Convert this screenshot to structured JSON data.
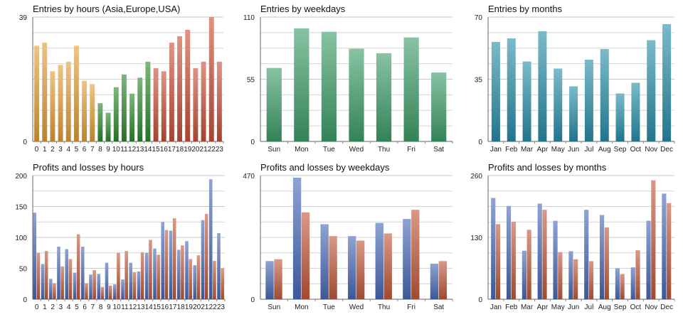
{
  "chart_data": [
    {
      "id": "c1",
      "type": "bar",
      "title": "Entries by hours (Asia,Europe,USA)",
      "ylim": [
        0,
        39
      ],
      "yticks": [
        0,
        39
      ],
      "categories": [
        "0",
        "1",
        "2",
        "3",
        "4",
        "5",
        "6",
        "7",
        "8",
        "9",
        "10",
        "11",
        "12",
        "13",
        "14",
        "15",
        "16",
        "17",
        "18",
        "19",
        "20",
        "21",
        "22",
        "23"
      ],
      "series": [
        {
          "name": "Entries",
          "values": [
            30,
            31,
            22,
            24,
            25,
            30,
            19,
            18,
            12,
            9,
            17,
            21,
            15,
            20,
            25,
            23,
            22,
            31,
            33,
            35,
            23,
            25,
            39,
            25
          ]
        }
      ],
      "bar_colors": [
        "#e3a03c",
        "#e3a03c",
        "#e3a03c",
        "#e3a03c",
        "#e3a03c",
        "#e3a03c",
        "#e3a03c",
        "#e3a03c",
        "#2e8a2e",
        "#2e8a2e",
        "#2e8a2e",
        "#2e8a2e",
        "#2e8a2e",
        "#2e8a2e",
        "#2e8a2e",
        "#c9523a",
        "#c9523a",
        "#c9523a",
        "#c9523a",
        "#c9523a",
        "#c9523a",
        "#c9523a",
        "#c9523a",
        "#c9523a"
      ]
    },
    {
      "id": "c2",
      "type": "bar",
      "title": "Entries by weekdays",
      "ylim": [
        0,
        110
      ],
      "yticks": [
        0,
        55,
        110
      ],
      "categories": [
        "Sun",
        "Mon",
        "Tue",
        "Wed",
        "Thu",
        "Fri",
        "Sat"
      ],
      "series": [
        {
          "name": "Entries",
          "values": [
            65,
            100,
            97,
            82,
            78,
            92,
            61
          ]
        }
      ],
      "bar_colors": [
        "#3f9f6a"
      ]
    },
    {
      "id": "c3",
      "type": "bar",
      "title": "Entries by months",
      "ylim": [
        0,
        70
      ],
      "yticks": [
        0,
        35,
        70
      ],
      "categories": [
        "Jan",
        "Feb",
        "Mar",
        "Apr",
        "May",
        "Jun",
        "Jul",
        "Aug",
        "Sep",
        "Oct",
        "Nov",
        "Dec"
      ],
      "series": [
        {
          "name": "Entries",
          "values": [
            56,
            58,
            45,
            62,
            41,
            31,
            46,
            52,
            27,
            33,
            57,
            66
          ]
        }
      ],
      "bar_colors": [
        "#2a8faa"
      ]
    },
    {
      "id": "c4",
      "type": "bar",
      "title": "Profits and losses by hours",
      "ylim": [
        0,
        200
      ],
      "yticks": [
        0,
        50,
        100,
        150,
        200
      ],
      "categories": [
        "0",
        "1",
        "2",
        "3",
        "4",
        "5",
        "6",
        "7",
        "8",
        "9",
        "10",
        "11",
        "12",
        "13",
        "14",
        "15",
        "16",
        "17",
        "18",
        "19",
        "20",
        "21",
        "22",
        "23"
      ],
      "series": [
        {
          "name": "Profits",
          "values": [
            140,
            57,
            33,
            85,
            81,
            43,
            85,
            40,
            41,
            59,
            24,
            32,
            59,
            45,
            75,
            82,
            125,
            111,
            80,
            94,
            55,
            128,
            194,
            107
          ]
        },
        {
          "name": "Losses",
          "values": [
            75,
            78,
            26,
            53,
            65,
            105,
            26,
            47,
            20,
            22,
            75,
            78,
            44,
            76,
            96,
            72,
            112,
            131,
            87,
            65,
            71,
            138,
            62,
            50
          ]
        }
      ],
      "bar_colors": [
        "#4a6bb8",
        "#c25a3c"
      ]
    },
    {
      "id": "c5",
      "type": "bar",
      "title": "Profits and losses by weekdays",
      "ylim": [
        0,
        470
      ],
      "yticks": [
        0,
        470
      ],
      "categories": [
        "Sun",
        "Mon",
        "Tue",
        "Wed",
        "Thu",
        "Fri",
        "Sat"
      ],
      "series": [
        {
          "name": "Profits",
          "values": [
            145,
            462,
            285,
            240,
            290,
            305,
            135
          ]
        },
        {
          "name": "Losses",
          "values": [
            152,
            330,
            240,
            223,
            250,
            340,
            145
          ]
        }
      ],
      "bar_colors": [
        "#4a6bb8",
        "#c25a3c"
      ]
    },
    {
      "id": "c6",
      "type": "bar",
      "title": "Profits and losses by months",
      "ylim": [
        0,
        260
      ],
      "yticks": [
        0,
        130,
        260
      ],
      "categories": [
        "Jan",
        "Feb",
        "Mar",
        "Apr",
        "May",
        "Jun",
        "Jul",
        "Aug",
        "Sep",
        "Oct",
        "Nov",
        "Dec"
      ],
      "series": [
        {
          "name": "Profits",
          "values": [
            213,
            196,
            102,
            201,
            165,
            101,
            188,
            177,
            65,
            67,
            165,
            222
          ]
        },
        {
          "name": "Losses",
          "values": [
            158,
            163,
            146,
            188,
            99,
            84,
            80,
            151,
            53,
            103,
            250,
            202
          ]
        }
      ],
      "bar_colors": [
        "#4a6bb8",
        "#c25a3c"
      ]
    }
  ]
}
